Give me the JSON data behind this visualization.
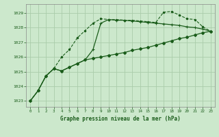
{
  "title": "Graphe pression niveau de la mer (hPa)",
  "background_color": "#cce8cc",
  "grid_color": "#aaccaa",
  "line_color": "#1a5c1a",
  "xlim": [
    -0.5,
    23.5
  ],
  "ylim": [
    1022.6,
    1029.6
  ],
  "yticks": [
    1023,
    1024,
    1025,
    1026,
    1027,
    1028,
    1029
  ],
  "xticks": [
    0,
    1,
    2,
    3,
    4,
    5,
    6,
    7,
    8,
    9,
    10,
    11,
    12,
    13,
    14,
    15,
    16,
    17,
    18,
    19,
    20,
    21,
    22,
    23
  ],
  "line1_y": [
    1023.0,
    1023.7,
    1024.7,
    1025.2,
    1026.0,
    1026.5,
    1027.3,
    1027.8,
    1028.3,
    1028.6,
    1028.55,
    1028.55,
    1028.5,
    1028.5,
    1028.45,
    1028.4,
    1028.35,
    1029.05,
    1029.1,
    1028.85,
    1028.6,
    1028.55,
    1028.05,
    1027.75
  ],
  "line2_y": [
    1023.0,
    1023.7,
    1024.7,
    1025.2,
    1025.05,
    1025.3,
    1025.55,
    1025.8,
    1025.9,
    1026.0,
    1026.1,
    1026.2,
    1026.3,
    1026.45,
    1026.55,
    1026.65,
    1026.8,
    1026.95,
    1027.1,
    1027.25,
    1027.35,
    1027.5,
    1027.65,
    1027.75
  ],
  "line3_y": [
    1023.0,
    1023.7,
    1024.7,
    1025.2,
    1025.05,
    1025.3,
    1025.55,
    1025.8,
    1026.5,
    1028.3,
    1028.55,
    1028.5,
    1028.5,
    1028.45,
    1028.4,
    1028.35,
    1028.3,
    1028.25,
    1028.2,
    1028.15,
    1028.05,
    1028.0,
    1027.9,
    1027.75
  ]
}
